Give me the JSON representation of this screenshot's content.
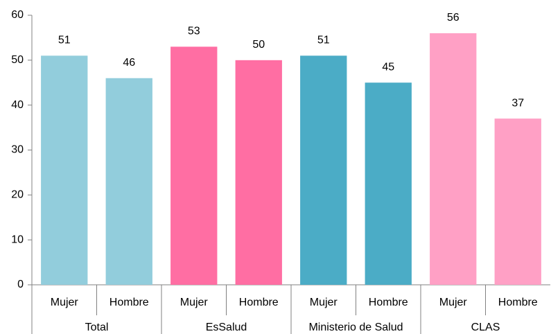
{
  "chart_data": {
    "type": "bar",
    "groups": [
      {
        "name": "Total",
        "color": "#92cddc",
        "categories": [
          "Mujer",
          "Hombre"
        ],
        "values": [
          51,
          46
        ]
      },
      {
        "name": "EsSalud",
        "color": "#ff6ea3",
        "categories": [
          "Mujer",
          "Hombre"
        ],
        "values": [
          53,
          50
        ]
      },
      {
        "name": "Ministerio de Salud",
        "color": "#4bacc6",
        "categories": [
          "Mujer",
          "Hombre"
        ],
        "values": [
          51,
          45
        ]
      },
      {
        "name": "CLAS",
        "color": "#ffa0c5",
        "categories": [
          "Mujer",
          "Hombre"
        ],
        "values": [
          56,
          37
        ]
      }
    ],
    "ylim": [
      0,
      60
    ],
    "yticks": [
      0,
      10,
      20,
      30,
      40,
      50,
      60
    ]
  }
}
